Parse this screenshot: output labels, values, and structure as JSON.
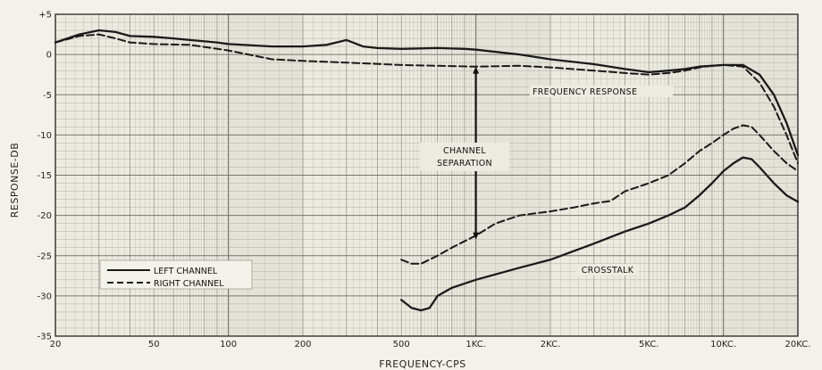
{
  "chart_data": {
    "type": "line",
    "title": "",
    "xlabel": "FREQUENCY-CPS",
    "ylabel": "RESPONSE-DB",
    "x_scale": "log",
    "xlim": [
      20,
      20000
    ],
    "ylim": [
      -35,
      5
    ],
    "x_ticks": [
      {
        "value": 20,
        "label": "20"
      },
      {
        "value": 50,
        "label": "50"
      },
      {
        "value": 100,
        "label": "100"
      },
      {
        "value": 200,
        "label": "200"
      },
      {
        "value": 500,
        "label": "500"
      },
      {
        "value": 1000,
        "label": "1KC."
      },
      {
        "value": 2000,
        "label": "2KC."
      },
      {
        "value": 5000,
        "label": "5KC."
      },
      {
        "value": 10000,
        "label": "10KC."
      },
      {
        "value": 20000,
        "label": "20KC."
      }
    ],
    "y_ticks": [
      {
        "value": 5,
        "label": "+5"
      },
      {
        "value": 0,
        "label": "0"
      },
      {
        "value": -5,
        "label": "-5"
      },
      {
        "value": -10,
        "label": "-10"
      },
      {
        "value": -15,
        "label": "-15"
      },
      {
        "value": -20,
        "label": "-20"
      },
      {
        "value": -25,
        "label": "-25"
      },
      {
        "value": -30,
        "label": "-30"
      },
      {
        "value": -35,
        "label": "-35"
      }
    ],
    "grid": true,
    "legend": {
      "position": "bottom-left",
      "entries": [
        {
          "label": "LEFT CHANNEL",
          "style": "solid"
        },
        {
          "label": "RIGHT CHANNEL",
          "style": "dashed"
        }
      ]
    },
    "annotations": {
      "frequency_response": "FREQUENCY RESPONSE",
      "channel_separation_line1": "CHANNEL",
      "channel_separation_line2": "SEPARATION",
      "crosstalk": "CROSSTALK"
    },
    "series": [
      {
        "group": "frequency-response",
        "channel": "left",
        "style": "solid",
        "points": [
          [
            20,
            1.5
          ],
          [
            25,
            2.5
          ],
          [
            30,
            3.0
          ],
          [
            35,
            2.8
          ],
          [
            40,
            2.3
          ],
          [
            50,
            2.2
          ],
          [
            60,
            2.0
          ],
          [
            70,
            1.8
          ],
          [
            90,
            1.5
          ],
          [
            100,
            1.3
          ],
          [
            150,
            1.0
          ],
          [
            200,
            1.0
          ],
          [
            250,
            1.2
          ],
          [
            300,
            1.8
          ],
          [
            350,
            1.0
          ],
          [
            400,
            0.8
          ],
          [
            500,
            0.7
          ],
          [
            700,
            0.8
          ],
          [
            900,
            0.7
          ],
          [
            1000,
            0.6
          ],
          [
            1500,
            0.0
          ],
          [
            2000,
            -0.6
          ],
          [
            3000,
            -1.2
          ],
          [
            4000,
            -1.8
          ],
          [
            5000,
            -2.2
          ],
          [
            6000,
            -2.0
          ],
          [
            7000,
            -1.8
          ],
          [
            8000,
            -1.5
          ],
          [
            9000,
            -1.4
          ],
          [
            10000,
            -1.3
          ],
          [
            12000,
            -1.3
          ],
          [
            14000,
            -2.5
          ],
          [
            16000,
            -5.0
          ],
          [
            18000,
            -8.5
          ],
          [
            20000,
            -12.5
          ]
        ]
      },
      {
        "group": "frequency-response",
        "channel": "right",
        "style": "dashed",
        "points": [
          [
            20,
            1.5
          ],
          [
            25,
            2.3
          ],
          [
            30,
            2.5
          ],
          [
            35,
            2.0
          ],
          [
            40,
            1.5
          ],
          [
            50,
            1.3
          ],
          [
            70,
            1.2
          ],
          [
            100,
            0.5
          ],
          [
            150,
            -0.6
          ],
          [
            200,
            -0.8
          ],
          [
            300,
            -1.0
          ],
          [
            500,
            -1.3
          ],
          [
            700,
            -1.4
          ],
          [
            1000,
            -1.5
          ],
          [
            1500,
            -1.4
          ],
          [
            2000,
            -1.6
          ],
          [
            3000,
            -2.0
          ],
          [
            4000,
            -2.3
          ],
          [
            5000,
            -2.5
          ],
          [
            6000,
            -2.3
          ],
          [
            7000,
            -2.0
          ],
          [
            8000,
            -1.6
          ],
          [
            9000,
            -1.4
          ],
          [
            10000,
            -1.3
          ],
          [
            12000,
            -1.5
          ],
          [
            14000,
            -3.5
          ],
          [
            16000,
            -6.5
          ],
          [
            18000,
            -10.0
          ],
          [
            20000,
            -13.5
          ]
        ]
      },
      {
        "group": "crosstalk",
        "channel": "left",
        "style": "solid",
        "points": [
          [
            500,
            -30.5
          ],
          [
            550,
            -31.5
          ],
          [
            600,
            -31.8
          ],
          [
            650,
            -31.5
          ],
          [
            700,
            -30.0
          ],
          [
            800,
            -29.0
          ],
          [
            1000,
            -28.0
          ],
          [
            1500,
            -26.5
          ],
          [
            2000,
            -25.5
          ],
          [
            3000,
            -23.5
          ],
          [
            4000,
            -22.0
          ],
          [
            5000,
            -21.0
          ],
          [
            6000,
            -20.0
          ],
          [
            7000,
            -19.0
          ],
          [
            8000,
            -17.5
          ],
          [
            9000,
            -16.0
          ],
          [
            10000,
            -14.5
          ],
          [
            11000,
            -13.5
          ],
          [
            12000,
            -12.8
          ],
          [
            13000,
            -13.0
          ],
          [
            14000,
            -14.0
          ],
          [
            16000,
            -16.0
          ],
          [
            18000,
            -17.5
          ],
          [
            20000,
            -18.3
          ]
        ]
      },
      {
        "group": "crosstalk",
        "channel": "right",
        "style": "dashed",
        "points": [
          [
            500,
            -25.5
          ],
          [
            550,
            -26.0
          ],
          [
            600,
            -26.0
          ],
          [
            700,
            -25.0
          ],
          [
            800,
            -24.0
          ],
          [
            1000,
            -22.5
          ],
          [
            1200,
            -21.0
          ],
          [
            1500,
            -20.0
          ],
          [
            2000,
            -19.5
          ],
          [
            2500,
            -19.0
          ],
          [
            3000,
            -18.5
          ],
          [
            3500,
            -18.2
          ],
          [
            4000,
            -17.0
          ],
          [
            5000,
            -16.0
          ],
          [
            6000,
            -15.0
          ],
          [
            7000,
            -13.5
          ],
          [
            8000,
            -12.0
          ],
          [
            9000,
            -11.0
          ],
          [
            10000,
            -10.0
          ],
          [
            11000,
            -9.2
          ],
          [
            12000,
            -8.8
          ],
          [
            13000,
            -9.0
          ],
          [
            14000,
            -10.0
          ],
          [
            16000,
            -12.0
          ],
          [
            18000,
            -13.5
          ],
          [
            20000,
            -14.5
          ]
        ]
      }
    ],
    "separation_arrow": {
      "x": 1000,
      "y_start": -1.5,
      "y_end": -23.0
    }
  }
}
